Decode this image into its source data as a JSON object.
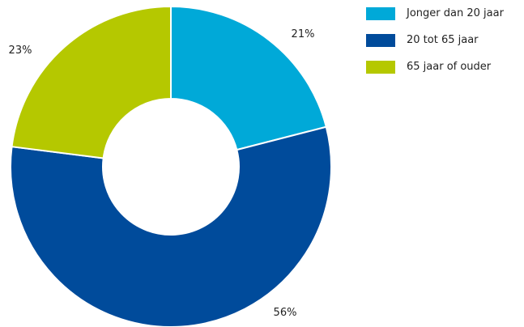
{
  "chart_data": {
    "type": "pie",
    "donut": true,
    "categories": [
      "Jonger dan 20 jaar",
      "20 tot 65 jaar",
      "65 jaar of ouder"
    ],
    "values": [
      21,
      56,
      23
    ],
    "value_labels": [
      "21%",
      "56%",
      "23%"
    ],
    "colors": [
      "#00a9d8",
      "#004b9b",
      "#b5c800"
    ],
    "legend": "top-right",
    "title": ""
  }
}
